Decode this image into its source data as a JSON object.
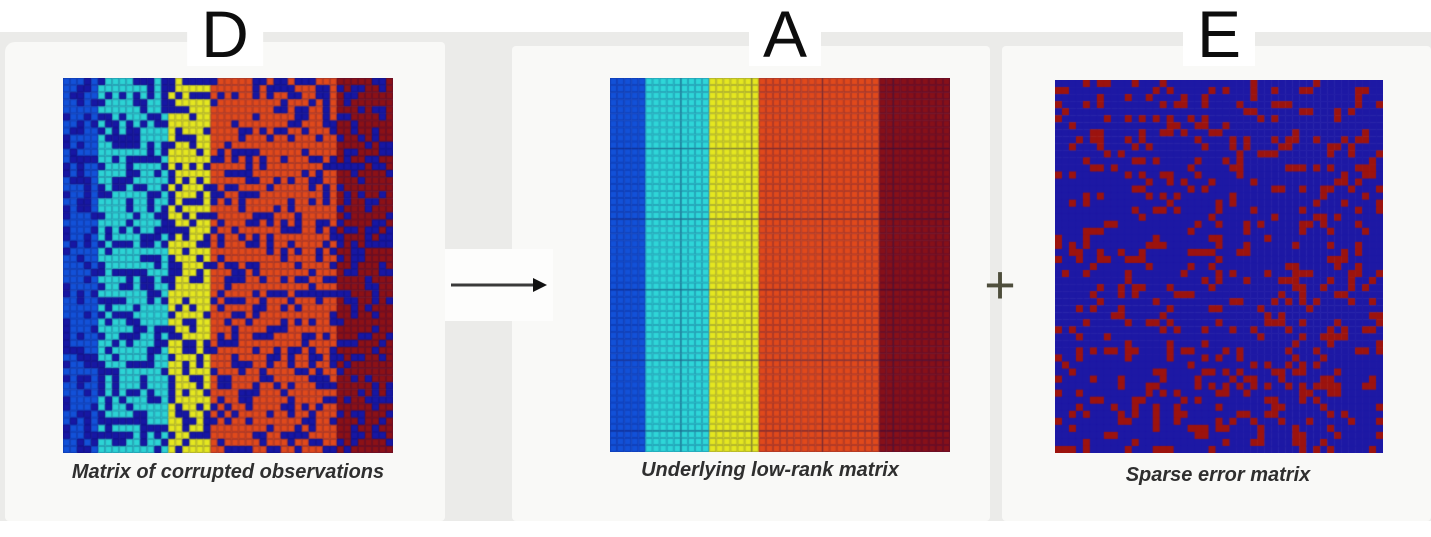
{
  "figure": {
    "description_kind": "matrix decomposition illustration: D -> A + E",
    "panels": [
      {
        "letter": "D",
        "caption": "Matrix of corrupted observations",
        "matrix": {
          "kind": "low-rank matrix with dense corruptions",
          "rows": 53,
          "cols": 47,
          "bands": [
            {
              "name": "blue",
              "color": "#1251d8",
              "cols": 5
            },
            {
              "name": "cyan",
              "color": "#2cd3d4",
              "cols": 10
            },
            {
              "name": "yellow",
              "color": "#e5e71f",
              "cols": 6
            },
            {
              "name": "orange-red",
              "color": "#e0491b",
              "cols": 18
            },
            {
              "name": "dark-red",
              "color": "#8c1116",
              "cols": 8
            }
          ],
          "noise": {
            "name": "corruption-navy",
            "color": "#1717a3",
            "density": 0.33,
            "seed": 20
          },
          "grid_line": "rgba(12,12,86,0.30)",
          "block_line": null,
          "block_every": 0
        }
      },
      {
        "letter": "A",
        "caption": "Underlying low-rank matrix",
        "matrix": {
          "kind": "clean low-rank matrix",
          "rows": 53,
          "cols": 48,
          "bands": [
            {
              "name": "blue",
              "color": "#1251d8",
              "cols": 5
            },
            {
              "name": "cyan",
              "color": "#2ed6d8",
              "cols": 9
            },
            {
              "name": "yellow",
              "color": "#e5e71f",
              "cols": 7
            },
            {
              "name": "orange-red",
              "color": "#e0491b",
              "cols": 17
            },
            {
              "name": "dark-red",
              "color": "#871019",
              "cols": 10
            }
          ],
          "noise": {
            "name": "none",
            "color": "#1717a3",
            "density": 0,
            "seed": 7
          },
          "grid_line": "rgba(12,12,86,0.28)",
          "block_line": "rgba(18,12,70,0.38)",
          "block_every": 10
        }
      },
      {
        "letter": "E",
        "caption": "Sparse error matrix",
        "matrix": {
          "kind": "sparse error matrix",
          "rows": 53,
          "cols": 47,
          "bands": [
            {
              "name": "navy",
              "color": "#1d18a4",
              "cols": 47
            }
          ],
          "noise": {
            "name": "error-red",
            "color": "#9c130e",
            "density": 0.22,
            "seed": 99
          },
          "grid_line": null,
          "block_line": null,
          "block_every": 0
        }
      }
    ],
    "operators": {
      "arrow_meaning": "decomposes into",
      "plus": "+"
    },
    "colors": {
      "slide_background": "#ebebe9",
      "card_background": "#f9f9f7",
      "caption_text": "#2f2f2f",
      "letter_text": "#0d0d0d"
    }
  }
}
